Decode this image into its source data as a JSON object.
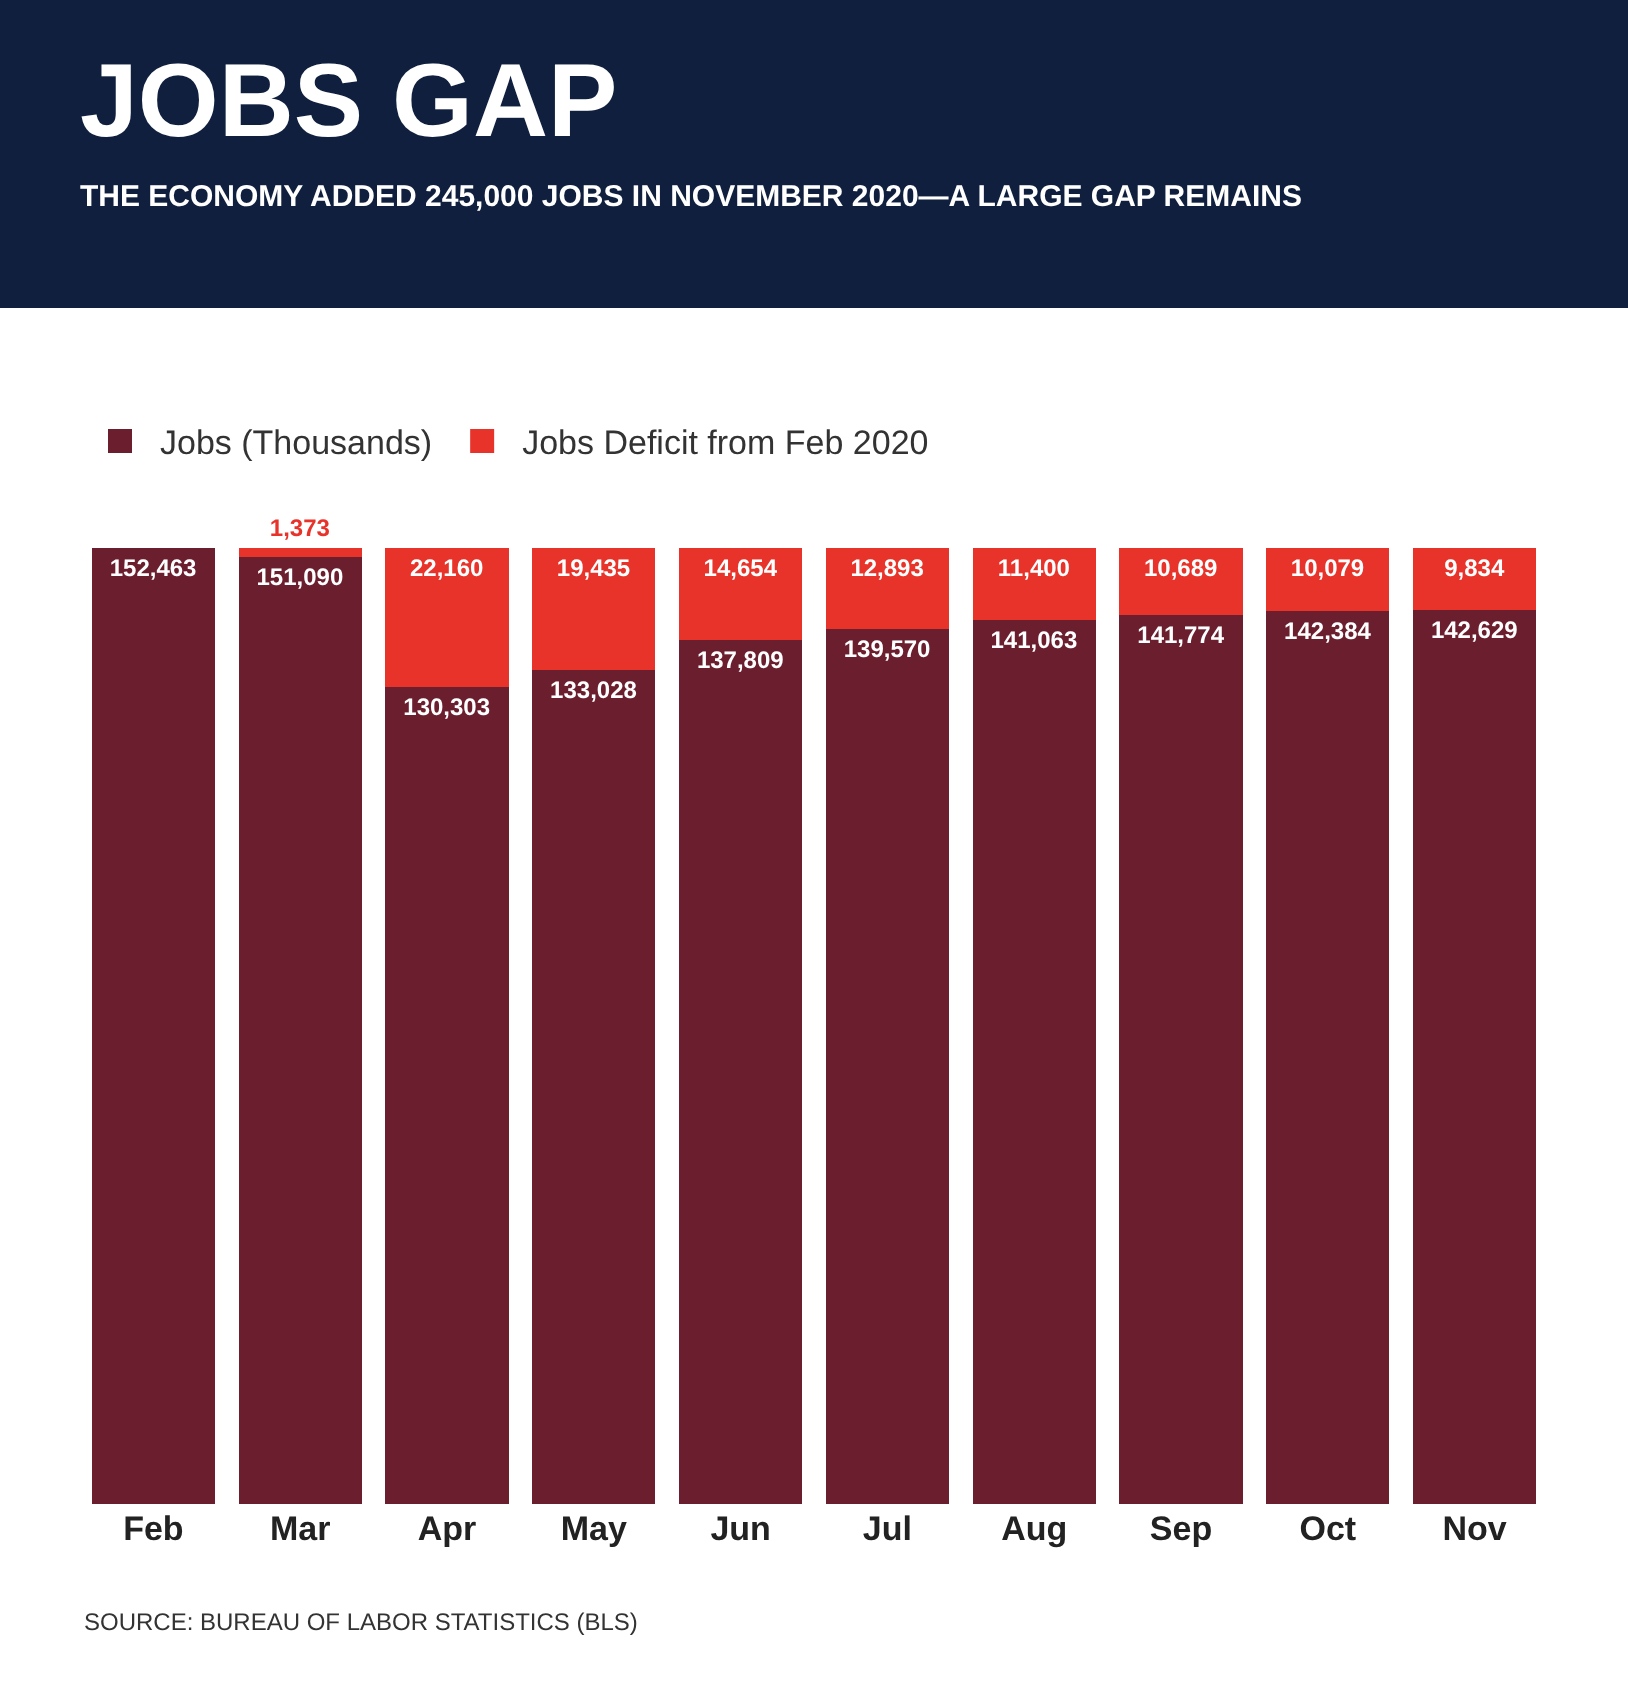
{
  "chart_data": {
    "type": "bar",
    "stacked": true,
    "title": "JOBS GAP",
    "subtitle": "THE ECONOMY ADDED 245,000 JOBS IN NOVEMBER 2020—A LARGE GAP REMAINS",
    "categories": [
      "Feb",
      "Mar",
      "Apr",
      "May",
      "Jun",
      "Jul",
      "Aug",
      "Sep",
      "Oct",
      "Nov"
    ],
    "series": [
      {
        "name": "Jobs (Thousands)",
        "color": "#6b1f2e",
        "values": [
          152463,
          151090,
          130303,
          133028,
          137809,
          139570,
          141063,
          141774,
          142384,
          142629
        ],
        "value_labels": [
          "152,463",
          "151,090",
          "130,303",
          "133,028",
          "137,809",
          "139,570",
          "141,063",
          "141,774",
          "142,384",
          "142,629"
        ]
      },
      {
        "name": "Jobs Deficit from Feb 2020",
        "color": "#e8332a",
        "values": [
          null,
          1373,
          22160,
          19435,
          14654,
          12893,
          11400,
          10689,
          10079,
          9834
        ],
        "value_labels": [
          null,
          "1,373",
          "22,160",
          "19,435",
          "14,654",
          "12,893",
          "11,400",
          "10,689",
          "10,079",
          "9,834"
        ]
      }
    ],
    "tick_labels": "x",
    "legend": "top left",
    "annotations": [
      "SOURCE: BUREAU OF LABOR STATISTICS (BLS)"
    ]
  }
}
